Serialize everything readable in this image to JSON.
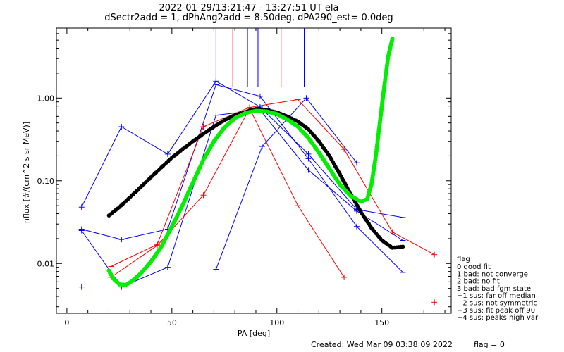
{
  "chart_data": {
    "type": "scatter",
    "title_line1": "2022-01-29/13:21:47 - 13:27:51 UT ela",
    "title_line2": "dSectr2add = 1, dPhAng2add = 8.50deg, dPA290_est=    0.0deg",
    "xlabel": "PA [deg]",
    "ylabel": "nflux [#/(cm^2 s sr MeV)]",
    "xlim": [
      -5,
      183
    ],
    "ylim": [
      0.0025,
      7
    ],
    "y_scale": "log",
    "x_ticks": [
      {
        "v": 0,
        "label": "0"
      },
      {
        "v": 50,
        "label": "50"
      },
      {
        "v": 100,
        "label": "100"
      },
      {
        "v": 150,
        "label": "150"
      }
    ],
    "y_ticks": [
      {
        "v": 0.01,
        "label": "0.01"
      },
      {
        "v": 0.1,
        "label": "0.10"
      },
      {
        "v": 1,
        "label": "1.00"
      }
    ],
    "footer_created": "Created: Wed Mar 09 03:38:09 2022",
    "footer_flag": "flag = 0",
    "colors": {
      "blue": "#0000ff",
      "red": "#ff0000",
      "black": "#000000",
      "green": "#00ee00"
    },
    "vertical_markers": [
      {
        "x": 71,
        "color": "#0000ff"
      },
      {
        "x": 79,
        "color": "#ff0000"
      },
      {
        "x": 86,
        "color": "#0000ff"
      },
      {
        "x": 91,
        "color": "#0000ff"
      },
      {
        "x": 102,
        "color": "#ff0000"
      },
      {
        "x": 113,
        "color": "#0000ff"
      }
    ],
    "series": [
      {
        "color": "#0000ff",
        "points": [
          [
            7,
            0.048
          ],
          [
            26,
            0.45
          ],
          [
            48,
            0.21
          ],
          [
            71,
            1.6
          ],
          [
            92,
            0.78
          ],
          [
            115,
            0.21
          ],
          [
            138,
            0.045
          ],
          [
            160,
            0.036
          ]
        ]
      },
      {
        "color": "#0000ff",
        "points": [
          [
            7,
            0.026
          ],
          [
            26,
            0.0195
          ],
          [
            48,
            0.026
          ],
          [
            71,
            1.45
          ],
          [
            92,
            1.05
          ],
          [
            115,
            0.185
          ],
          [
            138,
            0.028
          ],
          [
            160,
            0.0078
          ]
        ]
      },
      {
        "color": "#0000ff",
        "points": [
          [
            7,
            0.025
          ],
          [
            26,
            0.0052
          ],
          [
            48,
            0.009
          ],
          [
            71,
            0.62
          ],
          [
            92,
            0.72
          ],
          [
            115,
            0.135
          ],
          [
            138,
            0.043
          ],
          [
            160,
            0.019
          ]
        ]
      },
      {
        "color": "#0000ff",
        "points": [
          [
            71,
            0.0085
          ],
          [
            93,
            0.26
          ],
          [
            114,
            1.0
          ],
          [
            138,
            0.165
          ]
        ]
      },
      {
        "color": "#ff0000",
        "points": [
          [
            21,
            0.0092
          ],
          [
            43,
            0.017
          ],
          [
            65,
            0.45
          ],
          [
            87,
            0.77
          ],
          [
            110,
            0.96
          ],
          [
            132,
            0.24
          ],
          [
            155,
            0.024
          ],
          [
            175,
            0.0128
          ]
        ]
      },
      {
        "color": "#ff0000",
        "points": [
          [
            21,
            0.0068
          ],
          [
            43,
            0.0165
          ],
          [
            65,
            0.067
          ],
          [
            87,
            0.75
          ],
          [
            110,
            0.05
          ],
          [
            132,
            0.0068
          ]
        ]
      }
    ],
    "single_markers": [
      {
        "x": 7,
        "y": 0.0052,
        "color": "#0000ff"
      },
      {
        "x": 175,
        "y": 0.0034,
        "color": "#ff0000"
      }
    ],
    "fit_curve_black": [
      [
        20,
        0.038
      ],
      [
        25,
        0.048
      ],
      [
        30,
        0.063
      ],
      [
        35,
        0.083
      ],
      [
        40,
        0.11
      ],
      [
        45,
        0.145
      ],
      [
        50,
        0.19
      ],
      [
        55,
        0.24
      ],
      [
        60,
        0.3
      ],
      [
        65,
        0.37
      ],
      [
        70,
        0.45
      ],
      [
        75,
        0.54
      ],
      [
        80,
        0.62
      ],
      [
        85,
        0.68
      ],
      [
        88,
        0.72
      ],
      [
        90,
        0.74
      ],
      [
        95,
        0.72
      ],
      [
        100,
        0.67
      ],
      [
        105,
        0.6
      ],
      [
        110,
        0.52
      ],
      [
        115,
        0.42
      ],
      [
        120,
        0.3
      ],
      [
        125,
        0.2
      ],
      [
        130,
        0.12
      ],
      [
        135,
        0.07
      ],
      [
        140,
        0.042
      ],
      [
        145,
        0.027
      ],
      [
        150,
        0.019
      ],
      [
        155,
        0.0155
      ],
      [
        160,
        0.016
      ]
    ],
    "fit_curve_green": [
      [
        20,
        0.0082
      ],
      [
        22,
        0.0066
      ],
      [
        25,
        0.0056
      ],
      [
        28,
        0.0055
      ],
      [
        31,
        0.0061
      ],
      [
        35,
        0.0075
      ],
      [
        40,
        0.0105
      ],
      [
        45,
        0.016
      ],
      [
        50,
        0.028
      ],
      [
        55,
        0.05
      ],
      [
        60,
        0.095
      ],
      [
        65,
        0.18
      ],
      [
        70,
        0.3
      ],
      [
        75,
        0.44
      ],
      [
        80,
        0.57
      ],
      [
        85,
        0.66
      ],
      [
        90,
        0.7
      ],
      [
        95,
        0.69
      ],
      [
        100,
        0.64
      ],
      [
        105,
        0.55
      ],
      [
        110,
        0.45
      ],
      [
        115,
        0.33
      ],
      [
        120,
        0.22
      ],
      [
        125,
        0.14
      ],
      [
        130,
        0.09
      ],
      [
        135,
        0.066
      ],
      [
        140,
        0.056
      ],
      [
        143,
        0.06
      ],
      [
        145,
        0.09
      ],
      [
        147,
        0.19
      ],
      [
        149,
        0.5
      ],
      [
        151,
        1.3
      ],
      [
        153,
        3.2
      ],
      [
        155,
        5.2
      ]
    ],
    "legend": {
      "title": "flag",
      "items": [
        " 0 good fit",
        " 1 bad: not converge",
        " 2 bad: no fit",
        " 3 bad: bad fgm state",
        "−1 sus: far off median",
        "−2 sus: not symmetric",
        "−3 sus: fit peak off 90",
        "−4 sus: peaks high var"
      ]
    }
  }
}
